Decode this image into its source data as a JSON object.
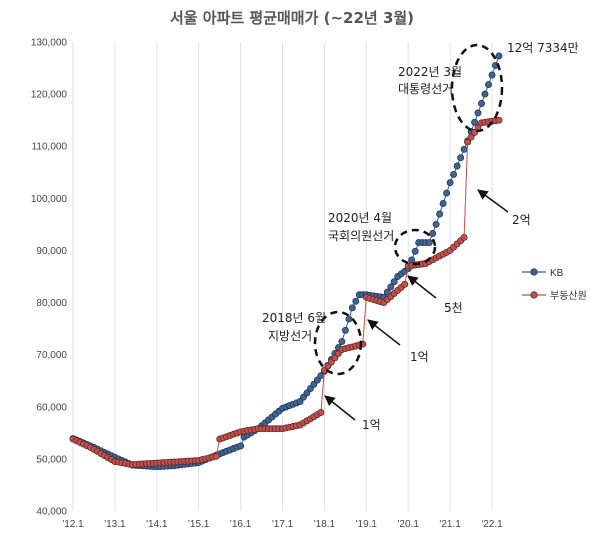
{
  "chart_data": {
    "type": "line",
    "title": "서울 아파트 평균매매가 (~22년 3월)",
    "xlabel": "",
    "ylabel": "",
    "x_start": "2012-01",
    "x_end": "2022-03",
    "xlim": [
      "2012-01",
      "2022-03"
    ],
    "ylim": [
      40000,
      130000
    ],
    "y_ticks": [
      "40,000",
      "50,000",
      "60,000",
      "70,000",
      "80,000",
      "90,000",
      "100,000",
      "110,000",
      "120,000",
      "130,000"
    ],
    "x_ticks": [
      "'12.1",
      "'13.1",
      "'14.1",
      "'15.1",
      "'16.1",
      "'17.1",
      "'18.1",
      "'19.1",
      "'20.1",
      "'21.1",
      "'22.1"
    ],
    "grid": "vertical",
    "legend_position": "right",
    "series": [
      {
        "name": "KB",
        "color": "#3a5f8f",
        "keypoints": [
          {
            "x": "2012-01",
            "y": 53900
          },
          {
            "x": "2012-06",
            "y": 52500
          },
          {
            "x": "2013-01",
            "y": 50300
          },
          {
            "x": "2013-06",
            "y": 48800
          },
          {
            "x": "2014-01",
            "y": 48500
          },
          {
            "x": "2014-06",
            "y": 48700
          },
          {
            "x": "2015-01",
            "y": 49300
          },
          {
            "x": "2015-06",
            "y": 50700
          },
          {
            "x": "2016-01",
            "y": 52500
          },
          {
            "x": "2016-02",
            "y": 54200
          },
          {
            "x": "2016-06",
            "y": 55800
          },
          {
            "x": "2017-01",
            "y": 59700
          },
          {
            "x": "2017-06",
            "y": 61000
          },
          {
            "x": "2018-01",
            "y": 66800
          },
          {
            "x": "2018-06",
            "y": 72500
          },
          {
            "x": "2018-09",
            "y": 79000
          },
          {
            "x": "2018-11",
            "y": 81500
          },
          {
            "x": "2019-01",
            "y": 81500
          },
          {
            "x": "2019-06",
            "y": 81000
          },
          {
            "x": "2019-10",
            "y": 85000
          },
          {
            "x": "2020-01",
            "y": 86500
          },
          {
            "x": "2020-04",
            "y": 91500
          },
          {
            "x": "2020-07",
            "y": 91500
          },
          {
            "x": "2020-09",
            "y": 95000
          },
          {
            "x": "2021-01",
            "y": 103000
          },
          {
            "x": "2021-06",
            "y": 111000
          },
          {
            "x": "2021-11",
            "y": 120000
          },
          {
            "x": "2022-03",
            "y": 127334
          }
        ]
      },
      {
        "name": "부동산원",
        "color": "#b85450",
        "keypoints": [
          {
            "x": "2012-01",
            "y": 53800
          },
          {
            "x": "2012-06",
            "y": 52200
          },
          {
            "x": "2013-01",
            "y": 49500
          },
          {
            "x": "2013-06",
            "y": 48900
          },
          {
            "x": "2014-01",
            "y": 49200
          },
          {
            "x": "2014-06",
            "y": 49400
          },
          {
            "x": "2015-01",
            "y": 49700
          },
          {
            "x": "2015-06",
            "y": 50500
          },
          {
            "x": "2015-07",
            "y": 53800
          },
          {
            "x": "2016-01",
            "y": 55200
          },
          {
            "x": "2016-06",
            "y": 55800
          },
          {
            "x": "2017-01",
            "y": 55800
          },
          {
            "x": "2017-06",
            "y": 56500
          },
          {
            "x": "2017-12",
            "y": 58900
          },
          {
            "x": "2018-01",
            "y": 67000
          },
          {
            "x": "2018-06",
            "y": 71000
          },
          {
            "x": "2018-12",
            "y": 72000
          },
          {
            "x": "2019-01",
            "y": 81000
          },
          {
            "x": "2019-06",
            "y": 80000
          },
          {
            "x": "2019-12",
            "y": 83500
          },
          {
            "x": "2020-01",
            "y": 87000
          },
          {
            "x": "2020-06",
            "y": 87500
          },
          {
            "x": "2021-01",
            "y": 90000
          },
          {
            "x": "2021-05",
            "y": 92500
          },
          {
            "x": "2021-06",
            "y": 110800
          },
          {
            "x": "2021-10",
            "y": 114500
          },
          {
            "x": "2022-03",
            "y": 115000
          }
        ]
      }
    ],
    "annotations": {
      "top_value": "12억 7334만",
      "e2022_line1": "2022년 3월",
      "e2022_line2": "대통령선거",
      "e2020_line1": "2020년 4월",
      "e2020_line2": "국회의원선거",
      "e2018_line1": "2018년 6월",
      "e2018_line2": "지방선거",
      "gap_2eok": "2억",
      "gap_5cheon": "5천",
      "gap_1eok_a": "1억",
      "gap_1eok_b": "1억"
    }
  }
}
